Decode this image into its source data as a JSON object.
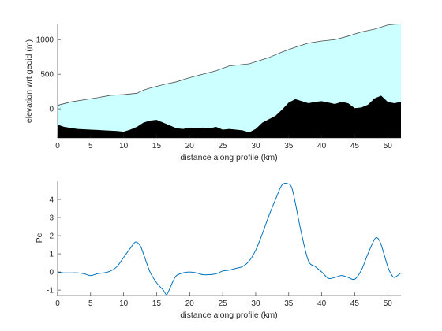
{
  "chart_data": [
    {
      "type": "area",
      "xlabel": "distance along profile (km)",
      "ylabel": "elevation wrt geoid (m)",
      "xlim": [
        0,
        52
      ],
      "ylim": [
        -420,
        1230
      ],
      "xticks": [
        0,
        5,
        10,
        15,
        20,
        25,
        30,
        35,
        40,
        45,
        50
      ],
      "yticks": [
        0,
        500,
        1000
      ],
      "grid": false,
      "colors": {
        "upper_fill": "#ccffff",
        "upper_line": "#4d4d4d",
        "lower_fill": "#000000"
      },
      "series": [
        {
          "x": [
            0,
            2,
            4,
            6,
            8,
            10,
            12,
            13,
            14,
            16,
            18,
            20,
            22,
            24,
            26,
            28,
            29,
            30,
            32,
            34,
            36,
            38,
            40,
            42,
            44,
            46,
            48,
            50,
            51,
            52
          ],
          "values": [
            50,
            100,
            130,
            160,
            195,
            205,
            225,
            270,
            300,
            350,
            390,
            450,
            500,
            550,
            620,
            640,
            650,
            680,
            740,
            820,
            890,
            950,
            980,
            1000,
            1050,
            1110,
            1150,
            1210,
            1220,
            1225
          ]
        },
        {
          "x": [
            0,
            1,
            3,
            5,
            7,
            9,
            10,
            11,
            12,
            13,
            14,
            15,
            16,
            17,
            18,
            19,
            20,
            21,
            22,
            23,
            24,
            25,
            26,
            27,
            28,
            29,
            30,
            31,
            32,
            33,
            34,
            35,
            36,
            37,
            38,
            39,
            40,
            41,
            42,
            43,
            44,
            45,
            46,
            47,
            48,
            49,
            50,
            51,
            52
          ],
          "values": [
            -230,
            -260,
            -290,
            -300,
            -310,
            -320,
            -330,
            -300,
            -260,
            -200,
            -170,
            -160,
            -200,
            -240,
            -280,
            -290,
            -270,
            -280,
            -270,
            -280,
            -260,
            -300,
            -290,
            -300,
            -310,
            -340,
            -290,
            -200,
            -150,
            -100,
            -10,
            90,
            140,
            110,
            80,
            100,
            110,
            90,
            70,
            100,
            80,
            10,
            20,
            60,
            150,
            190,
            100,
            80,
            100
          ]
        }
      ]
    },
    {
      "type": "line",
      "xlabel": "distance along profile (km)",
      "ylabel": "Pe",
      "xlim": [
        0,
        52
      ],
      "ylim": [
        -1.3,
        5
      ],
      "xticks": [
        0,
        5,
        10,
        15,
        20,
        25,
        30,
        35,
        40,
        45,
        50
      ],
      "yticks": [
        -1,
        0,
        1,
        2,
        3,
        4
      ],
      "grid": false,
      "colors": {
        "line": "#0072bd"
      },
      "series": [
        {
          "x": [
            0,
            1,
            2,
            3,
            4,
            5,
            6,
            7,
            8,
            9,
            10,
            11,
            11.8,
            12.5,
            13,
            14,
            15,
            16,
            16.5,
            17,
            17.5,
            18,
            19,
            20,
            21,
            22,
            23,
            24,
            25,
            26,
            27,
            28,
            29,
            30,
            31,
            32,
            33,
            34,
            35,
            35.5,
            36,
            37,
            38,
            39,
            40,
            41,
            42,
            43,
            44,
            45,
            46,
            47,
            48,
            48.5,
            49,
            50,
            50.5,
            51,
            52
          ],
          "values": [
            0,
            -0.05,
            -0.05,
            -0.05,
            -0.1,
            -0.2,
            -0.1,
            -0.05,
            0.05,
            0.3,
            0.8,
            1.3,
            1.65,
            1.45,
            1.0,
            0,
            -0.6,
            -1.0,
            -1.25,
            -0.9,
            -0.5,
            -0.2,
            -0.05,
            0,
            -0.05,
            -0.15,
            -0.15,
            -0.1,
            0.05,
            0.1,
            0.2,
            0.3,
            0.6,
            1.2,
            2.1,
            3.1,
            4.0,
            4.8,
            4.85,
            4.6,
            3.8,
            2.0,
            0.6,
            0.3,
            0,
            -0.35,
            -0.3,
            -0.2,
            -0.3,
            -0.4,
            0.1,
            1.0,
            1.8,
            1.85,
            1.5,
            0.3,
            -0.1,
            -0.3,
            -0.05
          ]
        }
      ]
    }
  ]
}
